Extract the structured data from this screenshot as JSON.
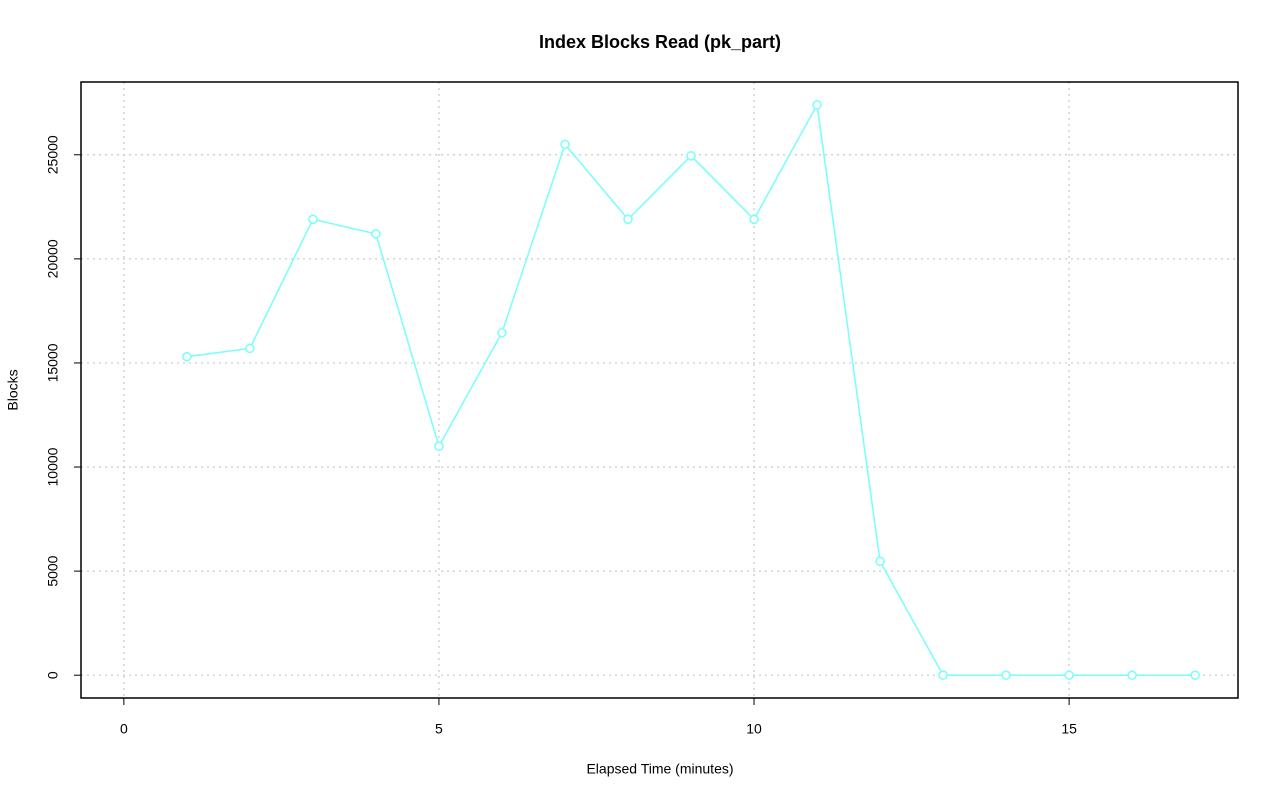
{
  "chart_data": {
    "type": "line",
    "title": "Index Blocks Read (pk_part)",
    "x_label": "Elapsed Time (minutes)",
    "y_label": "Blocks",
    "x": [
      1,
      2,
      3,
      4,
      5,
      6,
      7,
      8,
      9,
      10,
      11,
      12,
      13,
      14,
      15,
      16,
      17
    ],
    "series": [
      {
        "name": "pk_part",
        "color": "#7ffdfd",
        "values": [
          15300,
          15700,
          21900,
          21200,
          11000,
          16450,
          25500,
          21900,
          24950,
          21900,
          27400,
          5470,
          0,
          0,
          0,
          0,
          0
        ]
      }
    ],
    "xlim": [
      -0.68,
      17.68
    ],
    "xticks": [
      0,
      5,
      10,
      15
    ],
    "ylim": [
      -1096,
      28496
    ],
    "yticks": [
      0,
      5000,
      10000,
      15000,
      20000,
      25000
    ],
    "grid": true
  }
}
